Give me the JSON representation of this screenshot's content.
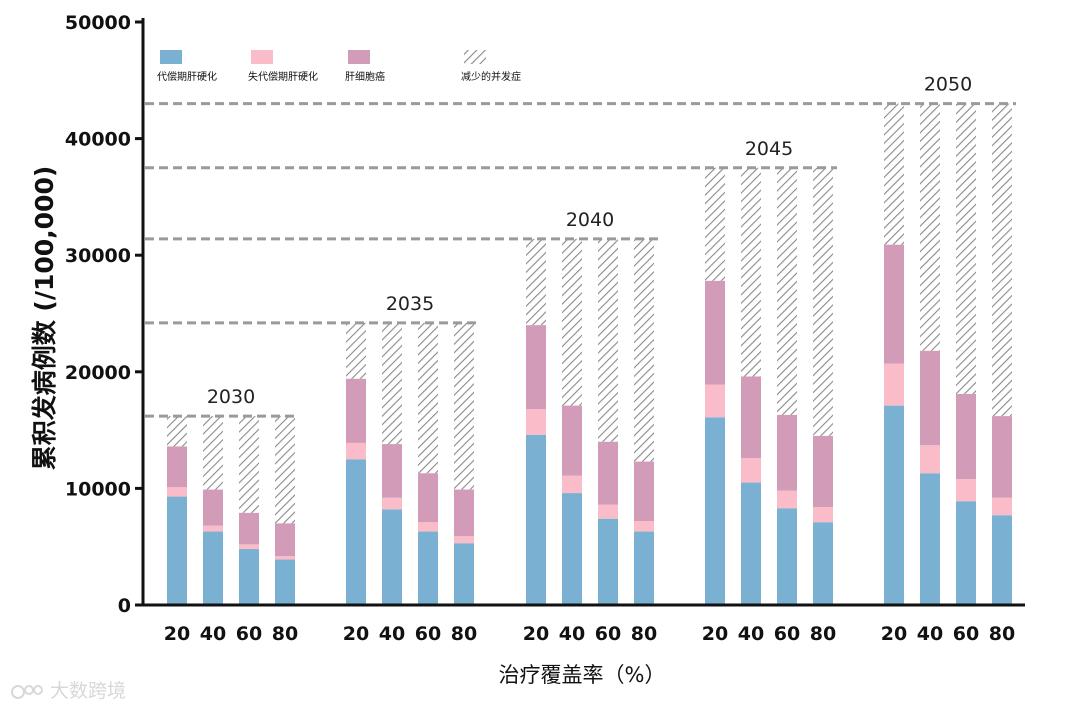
{
  "chart_data": {
    "type": "bar",
    "stacked": true,
    "title": "",
    "ylabel": "累积发病例数 (/100,000)",
    "xlabel": "治疗覆盖率（%）",
    "ylim": [
      0,
      50000
    ],
    "yticks": [
      "0",
      "10000",
      "20000",
      "30000",
      "40000",
      "50000"
    ],
    "ytick_values": [
      0,
      10000,
      20000,
      30000,
      40000,
      50000
    ],
    "coverage_labels": [
      "20",
      "40",
      "60",
      "80"
    ],
    "legend": [
      {
        "key": "comp",
        "label": "代偿期肝硬化",
        "color": "#7ab1d3"
      },
      {
        "key": "decomp",
        "label": "失代偿期肝硬化",
        "color": "#f9bcc8"
      },
      {
        "key": "hcc",
        "label": "肝细胞癌",
        "color": "#d29cb8"
      },
      {
        "key": "reduced",
        "label": "减少的并发症",
        "pattern": "hatch"
      }
    ],
    "groups": [
      {
        "year": "2030",
        "baseline": 16200,
        "bars": [
          {
            "coverage": "20",
            "comp": 9300,
            "decomp": 800,
            "hcc": 3500
          },
          {
            "coverage": "40",
            "comp": 6300,
            "decomp": 500,
            "hcc": 3100
          },
          {
            "coverage": "60",
            "comp": 4800,
            "decomp": 400,
            "hcc": 2700
          },
          {
            "coverage": "80",
            "comp": 3900,
            "decomp": 300,
            "hcc": 2800
          }
        ]
      },
      {
        "year": "2035",
        "baseline": 24200,
        "bars": [
          {
            "coverage": "20",
            "comp": 12500,
            "decomp": 1400,
            "hcc": 5500
          },
          {
            "coverage": "40",
            "comp": 8200,
            "decomp": 1000,
            "hcc": 4600
          },
          {
            "coverage": "60",
            "comp": 6300,
            "decomp": 800,
            "hcc": 4200
          },
          {
            "coverage": "80",
            "comp": 5300,
            "decomp": 600,
            "hcc": 4000
          }
        ]
      },
      {
        "year": "2040",
        "baseline": 31400,
        "bars": [
          {
            "coverage": "20",
            "comp": 14600,
            "decomp": 2200,
            "hcc": 7200
          },
          {
            "coverage": "40",
            "comp": 9600,
            "decomp": 1500,
            "hcc": 6000
          },
          {
            "coverage": "60",
            "comp": 7400,
            "decomp": 1200,
            "hcc": 5400
          },
          {
            "coverage": "80",
            "comp": 6300,
            "decomp": 900,
            "hcc": 5100
          }
        ]
      },
      {
        "year": "2045",
        "baseline": 37500,
        "bars": [
          {
            "coverage": "20",
            "comp": 16100,
            "decomp": 2800,
            "hcc": 8900
          },
          {
            "coverage": "40",
            "comp": 10500,
            "decomp": 2100,
            "hcc": 7000
          },
          {
            "coverage": "60",
            "comp": 8300,
            "decomp": 1500,
            "hcc": 6500
          },
          {
            "coverage": "80",
            "comp": 7100,
            "decomp": 1300,
            "hcc": 6100
          }
        ]
      },
      {
        "year": "2050",
        "baseline": 43000,
        "bars": [
          {
            "coverage": "20",
            "comp": 17100,
            "decomp": 3600,
            "hcc": 10200
          },
          {
            "coverage": "40",
            "comp": 11300,
            "decomp": 2400,
            "hcc": 8100
          },
          {
            "coverage": "60",
            "comp": 8900,
            "decomp": 1900,
            "hcc": 7300
          },
          {
            "coverage": "80",
            "comp": 7700,
            "decomp": 1500,
            "hcc": 7000
          }
        ]
      }
    ]
  },
  "watermark": "大数跨境"
}
